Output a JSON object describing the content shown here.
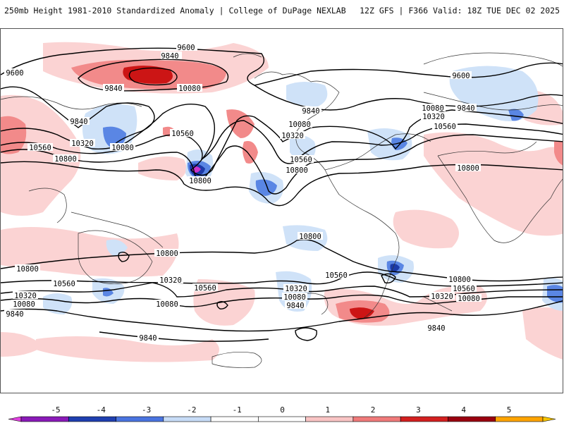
{
  "header": {
    "title_left": "250mb Height 1981-2010 Standardized Anomaly | College of DuPage NEXLAB",
    "title_right": "12Z GFS | F366 Valid: 18Z TUE DEC 02 2025"
  },
  "contour_labels": [
    "9600",
    "9840",
    "10080",
    "10320",
    "10560",
    "10800"
  ],
  "colorbar": {
    "tick_labels": [
      "-5",
      "-4",
      "-3",
      "-2",
      "-1",
      "0",
      "1",
      "2",
      "3",
      "4",
      "5"
    ],
    "colors": [
      "#e040e0",
      "#8a1ab8",
      "#1f3fb0",
      "#4a74e0",
      "#c7dcf7",
      "#ffffff",
      "#ffffff",
      "#f9c4c4",
      "#f07a7a",
      "#d32020",
      "#9a0010",
      "#ffa400",
      "#f5c400"
    ]
  },
  "colors": {
    "positive_light": "#fbd3d3",
    "positive_medium": "#f28a8a",
    "positive_strong": "#cc1515",
    "negative_light": "#cfe2f8",
    "negative_medium": "#5a86e4",
    "negative_strong": "#1c3aa8",
    "negative_extreme": "#cc33cc",
    "coastline": "#333333",
    "contour": "#000000"
  }
}
